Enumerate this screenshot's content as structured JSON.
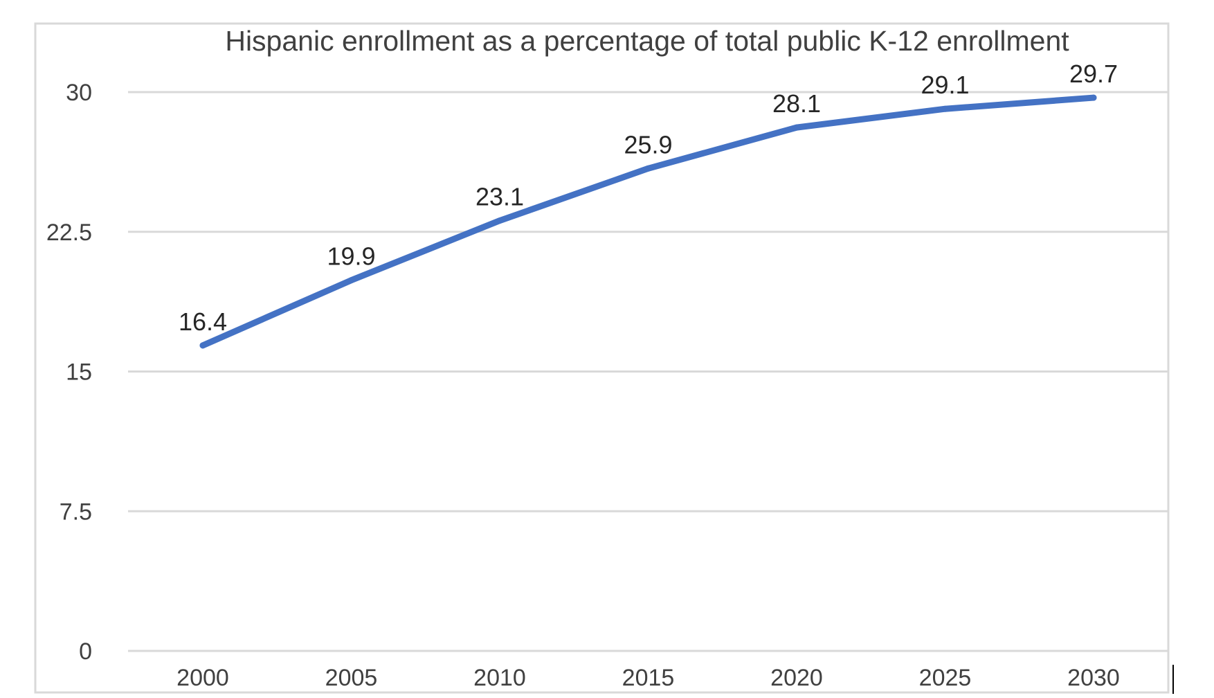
{
  "chart_data": {
    "type": "line",
    "title": "Hispanic enrollment as a percentage of total public K-12 enrollment",
    "x": [
      "2000",
      "2005",
      "2010",
      "2015",
      "2020",
      "2025",
      "2030"
    ],
    "series": [
      {
        "values": [
          16.4,
          19.9,
          23.1,
          25.9,
          28.1,
          29.1,
          29.7
        ],
        "data_labels": [
          "16.4",
          "19.9",
          "23.1",
          "25.9",
          "28.1",
          "29.1",
          "29.7"
        ],
        "color": "#4472C4"
      }
    ],
    "yticks": [
      "0",
      "7.5",
      "15",
      "22.5",
      "30"
    ],
    "ytick_values": [
      0,
      7.5,
      15,
      22.5,
      30
    ],
    "ylim": [
      0,
      30
    ],
    "grid": true,
    "legend": "none",
    "colors": {
      "line": "#4472C4",
      "grid": "#d9d9d9",
      "text": "#404040",
      "border": "#d9d9d9"
    }
  }
}
